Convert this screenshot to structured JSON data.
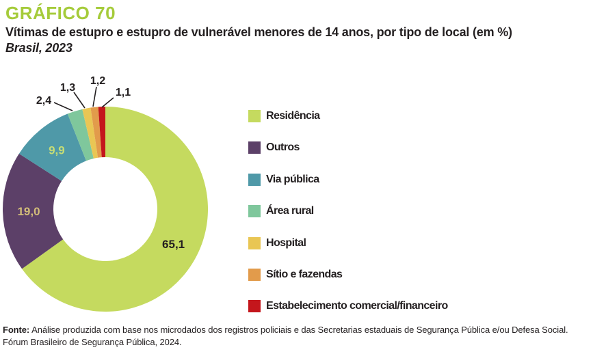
{
  "header": {
    "label": "GRÁFICO 70",
    "label_color": "#a5cb3a",
    "title": "Vítimas de estupro e estupro de vulnerável menores de 14 anos, por tipo de local (em %)",
    "subtitle": "Brasil, 2023"
  },
  "chart_data": {
    "type": "pie",
    "subtype": "donut",
    "title": "Vítimas de estupro e estupro de vulnerável menores de 14 anos, por tipo de local (em %)",
    "period": "Brasil, 2023",
    "unit": "%",
    "legend_position": "right",
    "categories": [
      "Residência",
      "Outros",
      "Via pública",
      "Área rural",
      "Hospital",
      "Sítio e fazendas",
      "Estabelecimento comercial/financeiro"
    ],
    "values": [
      65.1,
      19.0,
      9.9,
      2.4,
      1.3,
      1.2,
      1.1
    ],
    "slices": [
      {
        "label": "Residência",
        "value": 65.1,
        "display": "65,1",
        "color": "#c5da5f",
        "label_color": "#231f20",
        "label_placement": "inside"
      },
      {
        "label": "Outros",
        "value": 19.0,
        "display": "19,0",
        "color": "#5c4068",
        "label_color": "#d2bd79",
        "label_placement": "inside"
      },
      {
        "label": "Via pública",
        "value": 9.9,
        "display": "9,9",
        "color": "#4f99a8",
        "label_color": "#c6dd75",
        "label_placement": "inside"
      },
      {
        "label": "Área rural",
        "value": 2.4,
        "display": "2,4",
        "color": "#7fc79c",
        "label_color": "#231f20",
        "label_placement": "callout"
      },
      {
        "label": "Hospital",
        "value": 1.3,
        "display": "1,3",
        "color": "#e9c654",
        "label_color": "#231f20",
        "label_placement": "callout"
      },
      {
        "label": "Sítio e fazendas",
        "value": 1.2,
        "display": "1,2",
        "color": "#e29b4b",
        "label_color": "#231f20",
        "label_placement": "callout"
      },
      {
        "label": "Estabelecimento comercial/financeiro",
        "value": 1.1,
        "display": "1,1",
        "color": "#c4161c",
        "label_color": "#231f20",
        "label_placement": "callout"
      }
    ]
  },
  "footer": {
    "source_label": "Fonte:",
    "source_text": "Análise produzida com base nos microdados dos registros policiais e das Secretarias estaduais de Segurança Pública e/ou Defesa Social.",
    "source_text2": "Fórum Brasileiro de Segurança Pública, 2024."
  }
}
